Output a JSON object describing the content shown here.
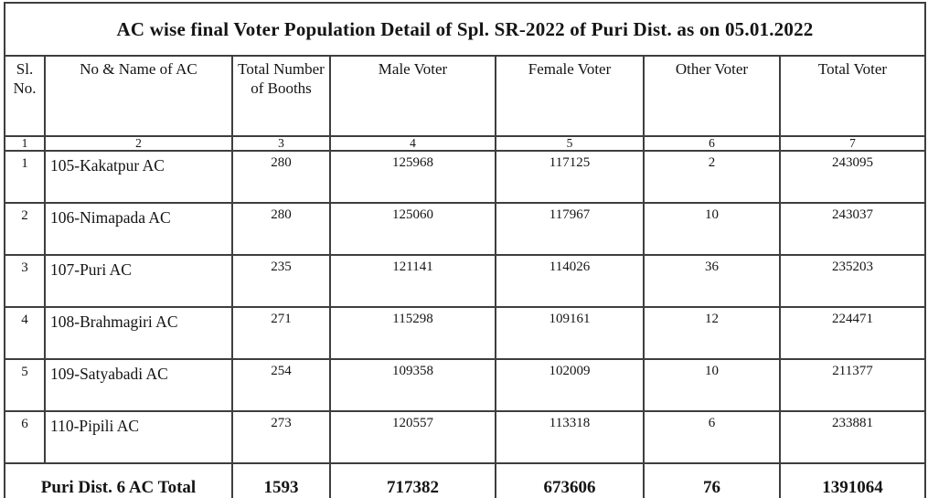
{
  "title": "AC wise final Voter Population Detail of Spl. SR-2022 of Puri Dist. as on 05.01.2022",
  "colors": {
    "background": "#ffffff",
    "text": "#141414",
    "border": "#3e3e3e"
  },
  "table": {
    "headers": {
      "sl": "Sl. No.",
      "name": "No & Name of AC",
      "booths": "Total Number of Booths",
      "male": "Male Voter",
      "female": "Female Voter",
      "other": "Other Voter",
      "total": "Total Voter"
    },
    "column_numbers": [
      "1",
      "2",
      "3",
      "4",
      "5",
      "6",
      "7"
    ],
    "rows": [
      {
        "sl": "1",
        "name": "105-Kakatpur AC",
        "booths": "280",
        "male": "125968",
        "female": "117125",
        "other": "2",
        "total": "243095"
      },
      {
        "sl": "2",
        "name": "106-Nimapada AC",
        "booths": "280",
        "male": "125060",
        "female": "117967",
        "other": "10",
        "total": "243037"
      },
      {
        "sl": "3",
        "name": "107-Puri AC",
        "booths": "235",
        "male": "121141",
        "female": "114026",
        "other": "36",
        "total": "235203"
      },
      {
        "sl": "4",
        "name": "108-Brahmagiri AC",
        "booths": "271",
        "male": "115298",
        "female": "109161",
        "other": "12",
        "total": "224471"
      },
      {
        "sl": "5",
        "name": "109-Satyabadi AC",
        "booths": "254",
        "male": "109358",
        "female": "102009",
        "other": "10",
        "total": "211377"
      },
      {
        "sl": "6",
        "name": "110-Pipili AC",
        "booths": "273",
        "male": "120557",
        "female": "113318",
        "other": "6",
        "total": "233881"
      }
    ],
    "total_row": {
      "label": "Puri Dist. 6 AC Total",
      "booths": "1593",
      "male": "717382",
      "female": "673606",
      "other": "76",
      "total": "1391064"
    }
  }
}
